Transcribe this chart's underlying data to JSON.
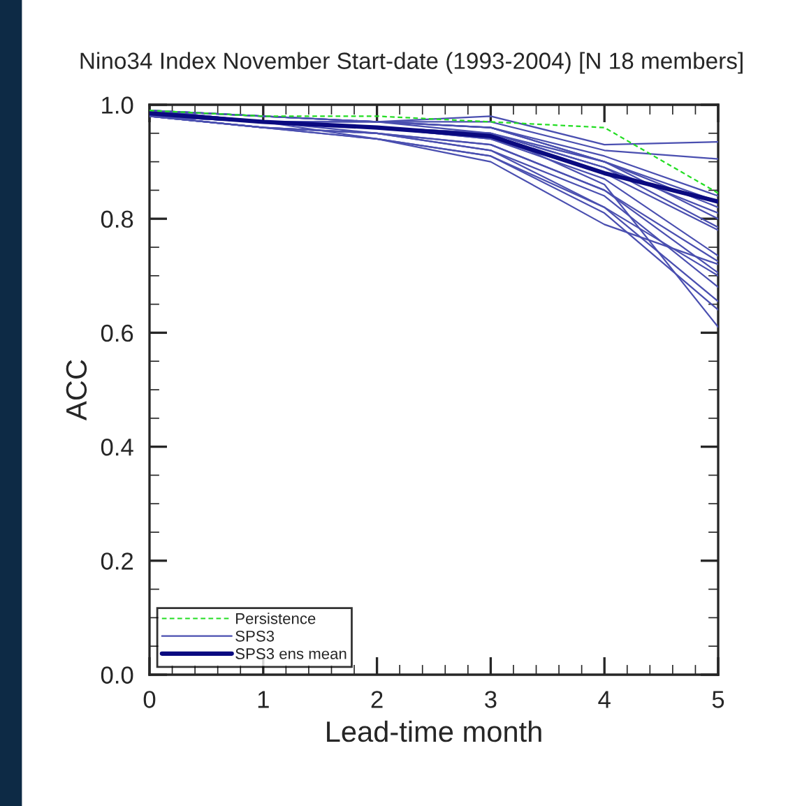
{
  "chart_data": {
    "type": "line",
    "title": "Nino34 Index November Start-date (1993-2004) [N 18 members]",
    "xlabel": "Lead-time month",
    "ylabel": "ACC",
    "x": [
      0,
      1,
      2,
      3,
      4,
      5
    ],
    "xlim": [
      0,
      5
    ],
    "xticks": [
      0,
      1,
      2,
      3,
      4,
      5
    ],
    "ylim": [
      0,
      1
    ],
    "yticks": [
      {
        "value": 0,
        "label": "0.0"
      },
      {
        "value": 0.2,
        "label": "0.2"
      },
      {
        "value": 0.4,
        "label": "0.4"
      },
      {
        "value": 0.6,
        "label": "0.6"
      },
      {
        "value": 0.8,
        "label": "0.8"
      },
      {
        "value": 1,
        "label": "1.0"
      }
    ],
    "grid": false,
    "legend": "bottom left",
    "marker": "none",
    "series": [
      {
        "name": "Persistence",
        "color": "#22dd22",
        "line_style": "dashed",
        "values": [
          0.99,
          0.98,
          0.98,
          0.97,
          0.96,
          0.845
        ]
      },
      {
        "name": "SPS3",
        "color": "#4a4fb0",
        "values": [
          0.99,
          0.98,
          0.97,
          0.98,
          0.93,
          0.935
        ]
      },
      {
        "color": "#4a4fb0",
        "values": [
          0.99,
          0.98,
          0.97,
          0.97,
          0.92,
          0.905
        ]
      },
      {
        "color": "#4a4fb0",
        "values": [
          0.99,
          0.98,
          0.97,
          0.96,
          0.91,
          0.84
        ]
      },
      {
        "color": "#4a4fb0",
        "values": [
          0.99,
          0.97,
          0.97,
          0.96,
          0.9,
          0.83
        ]
      },
      {
        "color": "#4a4fb0",
        "values": [
          0.98,
          0.97,
          0.97,
          0.95,
          0.9,
          0.82
        ]
      },
      {
        "color": "#4a4fb0",
        "values": [
          0.98,
          0.97,
          0.96,
          0.95,
          0.89,
          0.81
        ]
      },
      {
        "color": "#4a4fb0",
        "values": [
          0.98,
          0.97,
          0.96,
          0.95,
          0.89,
          0.785
        ]
      },
      {
        "color": "#4a4fb0",
        "values": [
          0.99,
          0.97,
          0.96,
          0.94,
          0.88,
          0.78
        ]
      },
      {
        "color": "#4a4fb0",
        "values": [
          0.98,
          0.97,
          0.96,
          0.94,
          0.87,
          0.735
        ]
      },
      {
        "color": "#4a4fb0",
        "values": [
          0.98,
          0.96,
          0.95,
          0.93,
          0.85,
          0.725
        ]
      },
      {
        "color": "#4a4fb0",
        "values": [
          0.99,
          0.97,
          0.95,
          0.93,
          0.85,
          0.705
        ]
      },
      {
        "color": "#4a4fb0",
        "values": [
          0.98,
          0.96,
          0.95,
          0.92,
          0.84,
          0.68
        ]
      },
      {
        "color": "#4a4fb0",
        "values": [
          0.98,
          0.96,
          0.95,
          0.92,
          0.82,
          0.655
        ]
      },
      {
        "color": "#4a4fb0",
        "values": [
          0.98,
          0.97,
          0.94,
          0.91,
          0.81,
          0.64
        ]
      },
      {
        "color": "#4a4fb0",
        "values": [
          0.99,
          0.97,
          0.96,
          0.95,
          0.86,
          0.61
        ]
      },
      {
        "color": "#4a4fb0",
        "values": [
          0.98,
          0.96,
          0.94,
          0.9,
          0.79,
          0.72
        ]
      },
      {
        "color": "#4a4fb0",
        "values": [
          0.99,
          0.98,
          0.97,
          0.96,
          0.9,
          0.8
        ]
      },
      {
        "color": "#4a4fb0",
        "values": [
          0.98,
          0.96,
          0.94,
          0.91,
          0.82,
          0.7
        ]
      },
      {
        "name": "SPS3 ens mean",
        "color": "#0a0a80",
        "values": [
          0.985,
          0.97,
          0.96,
          0.945,
          0.88,
          0.83
        ]
      }
    ]
  }
}
